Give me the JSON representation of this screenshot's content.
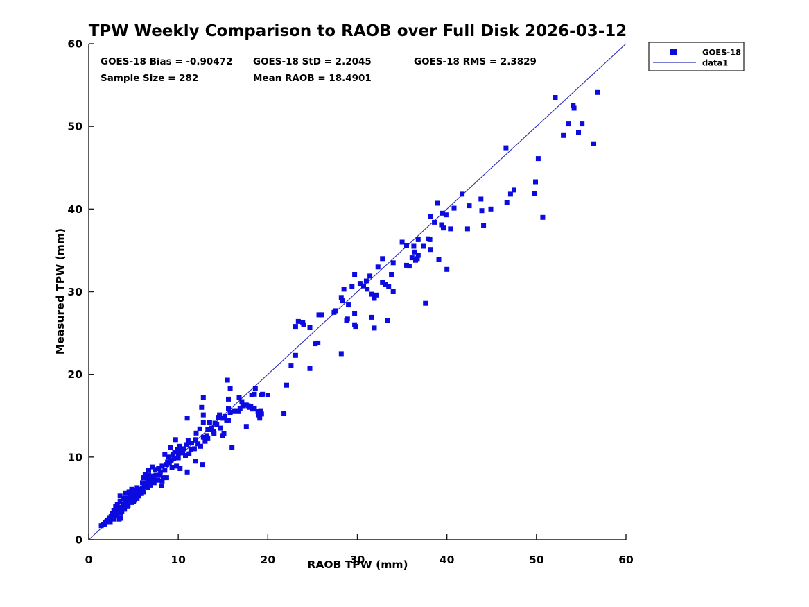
{
  "title": "TPW Weekly Comparison to RAOB over Full Disk 2026-03-12",
  "stats": {
    "bias": "GOES-18 Bias = -0.90472",
    "std": "GOES-18 StD = 2.2045",
    "rms": "GOES-18 RMS = 2.3829",
    "sample_size": "Sample Size = 282",
    "mean_raob": "Mean RAOB = 18.4901"
  },
  "legend": {
    "marker_label": "GOES-18",
    "line_label": "data1"
  },
  "colors": {
    "marker": "#0b0be0",
    "line": "#2c2cb4",
    "axis": "#1a1a1a",
    "text": "#000000",
    "background": "#ffffff"
  },
  "chart_data": {
    "type": "scatter",
    "title": "TPW Weekly Comparison to RAOB over Full Disk 2026-03-12",
    "xlabel": "RAOB TPW (mm)",
    "ylabel": "Measured TPW (mm)",
    "xlim": [
      0,
      60
    ],
    "ylim": [
      0,
      60
    ],
    "xticks": [
      0,
      10,
      20,
      30,
      40,
      50,
      60
    ],
    "yticks": [
      0,
      10,
      20,
      30,
      40,
      50,
      60
    ],
    "grid": false,
    "legend_position": "outside-top-right",
    "marker_size_px": 7,
    "identity_line": {
      "name": "data1",
      "from": [
        0,
        0
      ],
      "to": [
        60,
        60
      ]
    },
    "series": [
      {
        "name": "GOES-18",
        "marker": "square",
        "sample_size": 282,
        "points": [
          [
            1.4,
            1.7
          ],
          [
            1.6,
            1.8
          ],
          [
            1.8,
            1.9
          ],
          [
            1.9,
            2.1
          ],
          [
            2.0,
            2.2
          ],
          [
            2.1,
            2.4
          ],
          [
            2.2,
            2.3
          ],
          [
            2.3,
            2.6
          ],
          [
            2.4,
            2.1
          ],
          [
            2.5,
            2.8
          ],
          [
            2.6,
            3.2
          ],
          [
            2.7,
            2.9
          ],
          [
            2.8,
            3.5
          ],
          [
            2.8,
            2.5
          ],
          [
            2.9,
            3.1
          ],
          [
            3.0,
            4.0
          ],
          [
            3.0,
            3.3
          ],
          [
            3.1,
            2.9
          ],
          [
            3.2,
            4.3
          ],
          [
            3.2,
            3.8
          ],
          [
            3.3,
            3.6
          ],
          [
            3.4,
            2.5
          ],
          [
            3.5,
            4.6
          ],
          [
            3.5,
            5.3
          ],
          [
            3.6,
            2.6
          ],
          [
            3.6,
            3.9
          ],
          [
            3.6,
            3.2
          ],
          [
            3.7,
            3.4
          ],
          [
            3.8,
            4.1
          ],
          [
            3.9,
            4.3
          ],
          [
            3.9,
            5.0
          ],
          [
            4.0,
            4.2
          ],
          [
            4.0,
            3.7
          ],
          [
            4.1,
            4.6
          ],
          [
            4.1,
            5.6
          ],
          [
            4.2,
            4.4
          ],
          [
            4.3,
            4.0
          ],
          [
            4.4,
            5.0
          ],
          [
            4.4,
            4.1
          ],
          [
            4.5,
            5.8
          ],
          [
            4.5,
            4.7
          ],
          [
            4.6,
            5.3
          ],
          [
            4.7,
            4.9
          ],
          [
            4.8,
            6.1
          ],
          [
            4.8,
            4.5
          ],
          [
            4.9,
            5.6
          ],
          [
            5.0,
            5.2
          ],
          [
            5.0,
            4.6
          ],
          [
            5.1,
            4.8
          ],
          [
            5.2,
            6.0
          ],
          [
            5.3,
            5.5
          ],
          [
            5.4,
            6.3
          ],
          [
            5.4,
            5.0
          ],
          [
            5.5,
            5.7
          ],
          [
            5.6,
            5.3
          ],
          [
            5.7,
            6.1
          ],
          [
            5.8,
            6.0
          ],
          [
            5.9,
            5.6
          ],
          [
            6.0,
            6.2
          ],
          [
            6.0,
            6.9
          ],
          [
            6.1,
            7.5
          ],
          [
            6.1,
            5.8
          ],
          [
            6.2,
            6.4
          ],
          [
            6.3,
            7.9
          ],
          [
            6.4,
            6.6
          ],
          [
            6.5,
            6.9
          ],
          [
            6.6,
            6.3
          ],
          [
            6.6,
            7.3
          ],
          [
            6.7,
            8.4
          ],
          [
            6.7,
            7.8
          ],
          [
            6.8,
            7.0
          ],
          [
            6.9,
            6.6
          ],
          [
            7.0,
            7.6
          ],
          [
            7.1,
            8.8
          ],
          [
            7.1,
            7.2
          ],
          [
            7.2,
            7.7
          ],
          [
            7.3,
            6.9
          ],
          [
            7.4,
            8.5
          ],
          [
            7.5,
            7.8
          ],
          [
            7.7,
            7.2
          ],
          [
            7.8,
            8.6
          ],
          [
            7.9,
            7.8
          ],
          [
            8.0,
            8.2
          ],
          [
            8.1,
            6.5
          ],
          [
            8.2,
            8.9
          ],
          [
            8.2,
            7.1
          ],
          [
            8.3,
            7.5
          ],
          [
            8.5,
            10.3
          ],
          [
            8.5,
            8.4
          ],
          [
            8.7,
            9.1
          ],
          [
            8.7,
            7.5
          ],
          [
            8.8,
            9.4
          ],
          [
            8.9,
            10.0
          ],
          [
            9.0,
            9.3
          ],
          [
            9.1,
            11.2
          ],
          [
            9.2,
            9.6
          ],
          [
            9.3,
            8.7
          ],
          [
            9.4,
            10.3
          ],
          [
            9.5,
            9.8
          ],
          [
            9.6,
            10.6
          ],
          [
            9.7,
            12.1
          ],
          [
            9.8,
            8.9
          ],
          [
            9.9,
            10.9
          ],
          [
            10.0,
            9.9
          ],
          [
            10.0,
            10.4
          ],
          [
            10.1,
            11.3
          ],
          [
            10.2,
            8.6
          ],
          [
            10.3,
            10.8
          ],
          [
            10.5,
            10.5
          ],
          [
            10.6,
            11.0
          ],
          [
            10.8,
            10.2
          ],
          [
            10.9,
            11.5
          ],
          [
            11.0,
            14.7
          ],
          [
            11.0,
            8.2
          ],
          [
            11.1,
            12.0
          ],
          [
            11.2,
            10.4
          ],
          [
            11.4,
            10.9
          ],
          [
            11.5,
            11.7
          ],
          [
            11.8,
            11.0
          ],
          [
            11.9,
            12.1
          ],
          [
            11.9,
            9.5
          ],
          [
            12.0,
            12.9
          ],
          [
            12.2,
            11.6
          ],
          [
            12.4,
            13.4
          ],
          [
            12.5,
            11.3
          ],
          [
            12.6,
            16.0
          ],
          [
            12.7,
            9.1
          ],
          [
            12.8,
            17.2
          ],
          [
            12.8,
            15.1
          ],
          [
            12.8,
            14.2
          ],
          [
            12.8,
            12.4
          ],
          [
            13.0,
            11.9
          ],
          [
            13.2,
            12.6
          ],
          [
            13.3,
            13.3
          ],
          [
            13.3,
            12.3
          ],
          [
            13.5,
            14.2
          ],
          [
            13.6,
            13.3
          ],
          [
            13.7,
            13.5
          ],
          [
            13.9,
            13.1
          ],
          [
            14.0,
            12.8
          ],
          [
            14.1,
            14.1
          ],
          [
            14.3,
            13.9
          ],
          [
            14.5,
            14.8
          ],
          [
            14.6,
            15.1
          ],
          [
            14.7,
            13.5
          ],
          [
            14.9,
            14.7
          ],
          [
            14.9,
            12.6
          ],
          [
            15.0,
            14.7
          ],
          [
            15.1,
            12.8
          ],
          [
            15.2,
            14.9
          ],
          [
            15.4,
            14.4
          ],
          [
            15.5,
            19.3
          ],
          [
            15.6,
            17.0
          ],
          [
            15.6,
            15.9
          ],
          [
            15.6,
            14.4
          ],
          [
            15.8,
            18.3
          ],
          [
            15.8,
            15.4
          ],
          [
            16.0,
            11.2
          ],
          [
            16.2,
            15.5
          ],
          [
            16.3,
            15.6
          ],
          [
            16.5,
            15.6
          ],
          [
            16.7,
            15.5
          ],
          [
            16.8,
            17.2
          ],
          [
            16.9,
            15.9
          ],
          [
            17.1,
            16.7
          ],
          [
            17.2,
            16.2
          ],
          [
            17.6,
            16.3
          ],
          [
            17.6,
            13.7
          ],
          [
            17.8,
            16.2
          ],
          [
            18.0,
            16.0
          ],
          [
            18.1,
            16.1
          ],
          [
            18.2,
            17.5
          ],
          [
            18.3,
            15.8
          ],
          [
            18.5,
            17.6
          ],
          [
            18.5,
            15.9
          ],
          [
            18.6,
            18.3
          ],
          [
            18.9,
            15.5
          ],
          [
            19.0,
            15.1
          ],
          [
            19.1,
            14.7
          ],
          [
            19.2,
            15.6
          ],
          [
            19.3,
            17.5
          ],
          [
            19.3,
            15.2
          ],
          [
            19.4,
            17.6
          ],
          [
            20.0,
            17.5
          ],
          [
            21.8,
            15.3
          ],
          [
            22.1,
            18.7
          ],
          [
            22.6,
            21.1
          ],
          [
            23.1,
            25.8
          ],
          [
            23.1,
            22.3
          ],
          [
            23.4,
            26.4
          ],
          [
            23.9,
            26.3
          ],
          [
            24.0,
            26.0
          ],
          [
            24.7,
            25.7
          ],
          [
            24.7,
            20.7
          ],
          [
            25.3,
            23.7
          ],
          [
            25.6,
            23.8
          ],
          [
            25.7,
            27.2
          ],
          [
            26.0,
            27.2
          ],
          [
            27.4,
            27.5
          ],
          [
            27.6,
            27.7
          ],
          [
            28.2,
            29.3
          ],
          [
            28.2,
            22.5
          ],
          [
            28.3,
            28.9
          ],
          [
            28.5,
            30.3
          ],
          [
            28.8,
            26.5
          ],
          [
            28.9,
            26.7
          ],
          [
            29.0,
            28.4
          ],
          [
            29.4,
            30.6
          ],
          [
            29.7,
            32.1
          ],
          [
            29.7,
            27.4
          ],
          [
            29.7,
            26.0
          ],
          [
            29.8,
            25.8
          ],
          [
            30.3,
            31.0
          ],
          [
            30.7,
            30.7
          ],
          [
            31.0,
            31.3
          ],
          [
            31.1,
            30.3
          ],
          [
            31.4,
            31.9
          ],
          [
            31.6,
            29.7
          ],
          [
            31.6,
            26.9
          ],
          [
            31.9,
            29.2
          ],
          [
            31.9,
            25.6
          ],
          [
            32.1,
            29.6
          ],
          [
            32.3,
            33.0
          ],
          [
            32.8,
            34.0
          ],
          [
            32.8,
            31.1
          ],
          [
            33.1,
            30.9
          ],
          [
            33.4,
            26.5
          ],
          [
            33.5,
            30.6
          ],
          [
            33.8,
            32.1
          ],
          [
            34.0,
            33.5
          ],
          [
            34.0,
            30.0
          ],
          [
            35.0,
            36.0
          ],
          [
            35.5,
            35.6
          ],
          [
            35.5,
            33.2
          ],
          [
            35.8,
            33.1
          ],
          [
            36.1,
            34.1
          ],
          [
            36.3,
            35.5
          ],
          [
            36.4,
            34.8
          ],
          [
            36.5,
            33.8
          ],
          [
            36.7,
            34.0
          ],
          [
            36.8,
            36.3
          ],
          [
            36.8,
            34.4
          ],
          [
            37.4,
            35.5
          ],
          [
            37.6,
            28.6
          ],
          [
            37.9,
            36.4
          ],
          [
            38.1,
            36.3
          ],
          [
            38.2,
            39.1
          ],
          [
            38.2,
            35.1
          ],
          [
            38.6,
            38.4
          ],
          [
            38.9,
            40.7
          ],
          [
            39.1,
            33.9
          ],
          [
            39.4,
            38.1
          ],
          [
            39.5,
            39.5
          ],
          [
            39.6,
            37.7
          ],
          [
            39.9,
            39.3
          ],
          [
            40.0,
            32.7
          ],
          [
            40.4,
            37.6
          ],
          [
            40.8,
            40.1
          ],
          [
            41.7,
            41.8
          ],
          [
            42.3,
            37.6
          ],
          [
            42.5,
            40.4
          ],
          [
            43.8,
            41.2
          ],
          [
            43.9,
            39.8
          ],
          [
            44.1,
            38.0
          ],
          [
            44.9,
            40.0
          ],
          [
            46.6,
            47.4
          ],
          [
            46.7,
            40.8
          ],
          [
            47.1,
            41.8
          ],
          [
            47.5,
            42.3
          ],
          [
            49.8,
            41.9
          ],
          [
            49.9,
            43.3
          ],
          [
            50.2,
            46.1
          ],
          [
            50.7,
            39.0
          ],
          [
            52.1,
            53.5
          ],
          [
            53.0,
            48.9
          ],
          [
            53.6,
            50.3
          ],
          [
            54.1,
            52.5
          ],
          [
            54.2,
            52.2
          ],
          [
            54.7,
            49.3
          ],
          [
            55.1,
            50.3
          ],
          [
            56.4,
            47.9
          ],
          [
            56.8,
            54.1
          ]
        ]
      }
    ]
  }
}
